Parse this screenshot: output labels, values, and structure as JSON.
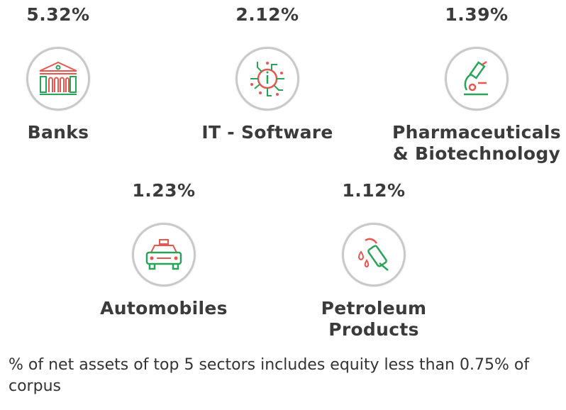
{
  "colors": {
    "red": "#e8574f",
    "green": "#2aa35a",
    "text": "#3b3b3b"
  },
  "sectors": [
    {
      "name": "Banks",
      "pct": "5.32%",
      "icon": "bank-icon"
    },
    {
      "name": "IT - Software",
      "pct": "2.12%",
      "icon": "circuit-icon"
    },
    {
      "name": "Pharmaceuticals & Biotechnology",
      "pct": "1.39%",
      "icon": "microscope-icon"
    },
    {
      "name": "Automobiles",
      "pct": "1.23%",
      "icon": "car-icon"
    },
    {
      "name": "Petroleum Products",
      "pct": "1.12%",
      "icon": "fuel-nozzle-icon"
    }
  ],
  "footnote": "% of net assets of top 5 sectors includes equity less than 0.75% of corpus"
}
